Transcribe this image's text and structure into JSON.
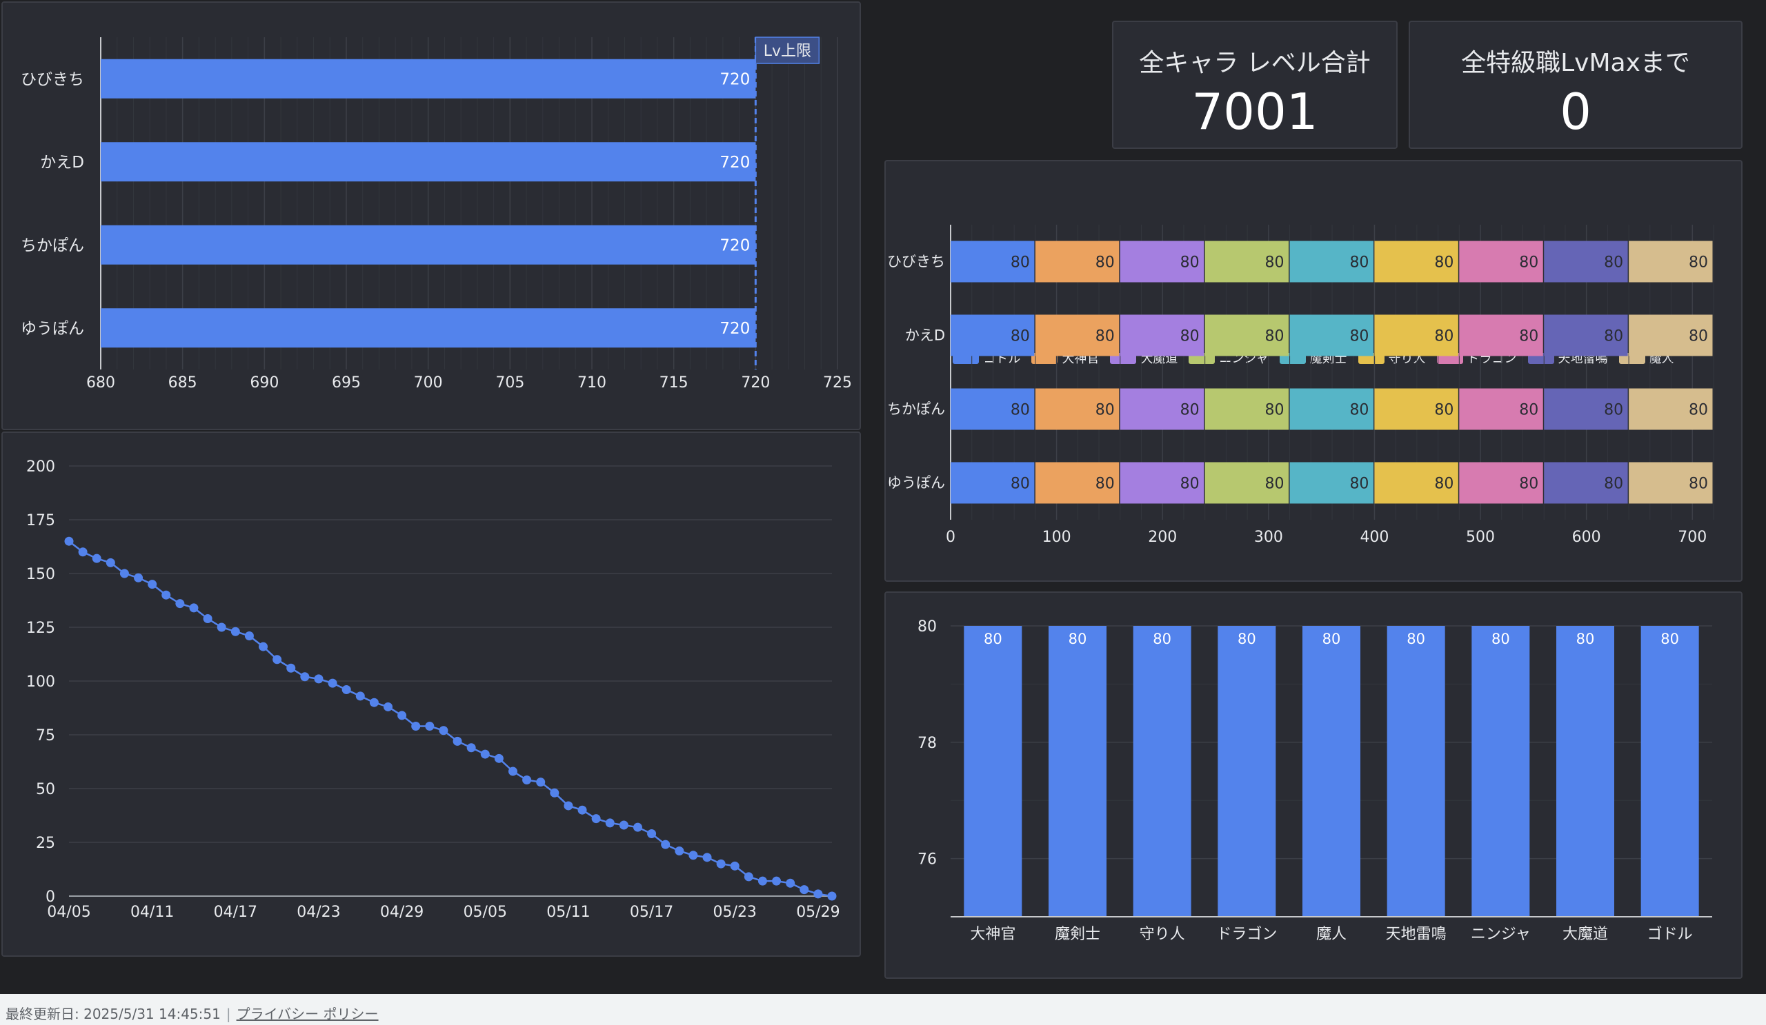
{
  "kpis": {
    "level_total": {
      "title": "全キャラ レベル合計",
      "value": "7001"
    },
    "until_max": {
      "title": "全特級職LvMaxまで",
      "value": "0"
    }
  },
  "footer": {
    "last_updated": "最終更新日: 2025/5/31 14:45:51",
    "privacy_link": "プライバシー ポリシー"
  },
  "colors": {
    "ゴドル": "#5383ec",
    "大神官": "#eba25f",
    "大魔道": "#a47fe0",
    "ニンジャ": "#b7c86f",
    "魔剣士": "#56b5c7",
    "守り人": "#e5c14d",
    "ドラゴン": "#d77bb0",
    "天地雷鳴": "#6565b6",
    "魔人": "#d6bd8e"
  },
  "chart_data": [
    {
      "type": "bar",
      "orientation": "horizontal",
      "categories": [
        "ひびきち",
        "かえD",
        "ちかぽん",
        "ゆうぽん"
      ],
      "values": [
        720,
        720,
        720,
        720
      ],
      "xlim": [
        680,
        725
      ],
      "xticks": [
        "680",
        "685",
        "690",
        "695",
        "700",
        "705",
        "710",
        "715",
        "720",
        "725"
      ],
      "reference_line": {
        "value": 720,
        "label": "Lv上限"
      },
      "color": "#5383ec"
    },
    {
      "type": "line",
      "x_labels": [
        "04/05",
        "04/11",
        "04/17",
        "04/23",
        "04/29",
        "05/05",
        "05/11",
        "05/17",
        "05/23",
        "05/29"
      ],
      "y": [
        165,
        160,
        157,
        155,
        150,
        148,
        145,
        140,
        136,
        134,
        129,
        125,
        123,
        121,
        116,
        110,
        106,
        102,
        101,
        99,
        96,
        93,
        90,
        88,
        84,
        79,
        79,
        77,
        72,
        69,
        66,
        64,
        58,
        54,
        53,
        48,
        42,
        40,
        36,
        34,
        33,
        32,
        29,
        24,
        21,
        19,
        18,
        15,
        14,
        9,
        7,
        7,
        6,
        3,
        1,
        0
      ],
      "ylim": [
        0,
        200
      ],
      "yticks": [
        "0",
        "25",
        "50",
        "75",
        "100",
        "125",
        "150",
        "175",
        "200"
      ],
      "color": "#5383ec"
    },
    {
      "type": "bar",
      "orientation": "horizontal",
      "stacked": true,
      "categories": [
        "ひびきち",
        "かえD",
        "ちかぽん",
        "ゆうぽん"
      ],
      "series": [
        {
          "name": "ゴドル",
          "values": [
            80,
            80,
            80,
            80
          ]
        },
        {
          "name": "大神官",
          "values": [
            80,
            80,
            80,
            80
          ]
        },
        {
          "name": "大魔道",
          "values": [
            80,
            80,
            80,
            80
          ]
        },
        {
          "name": "ニンジャ",
          "values": [
            80,
            80,
            80,
            80
          ]
        },
        {
          "name": "魔剣士",
          "values": [
            80,
            80,
            80,
            80
          ]
        },
        {
          "name": "守り人",
          "values": [
            80,
            80,
            80,
            80
          ]
        },
        {
          "name": "ドラゴン",
          "values": [
            80,
            80,
            80,
            80
          ]
        },
        {
          "name": "天地雷鳴",
          "values": [
            80,
            80,
            80,
            80
          ]
        },
        {
          "name": "魔人",
          "values": [
            80,
            80,
            80,
            80
          ]
        }
      ],
      "xlim": [
        0,
        720
      ],
      "xticks": [
        "0",
        "100",
        "200",
        "300",
        "400",
        "500",
        "600",
        "700"
      ],
      "legend": "top"
    },
    {
      "type": "bar",
      "categories": [
        "大神官",
        "魔剣士",
        "守り人",
        "ドラゴン",
        "魔人",
        "天地雷鳴",
        "ニンジャ",
        "大魔道",
        "ゴドル"
      ],
      "values": [
        80,
        80,
        80,
        80,
        80,
        80,
        80,
        80,
        80
      ],
      "ylim": [
        75,
        80
      ],
      "yticks": [
        "76",
        "78",
        "80"
      ],
      "color": "#5383ec"
    }
  ]
}
